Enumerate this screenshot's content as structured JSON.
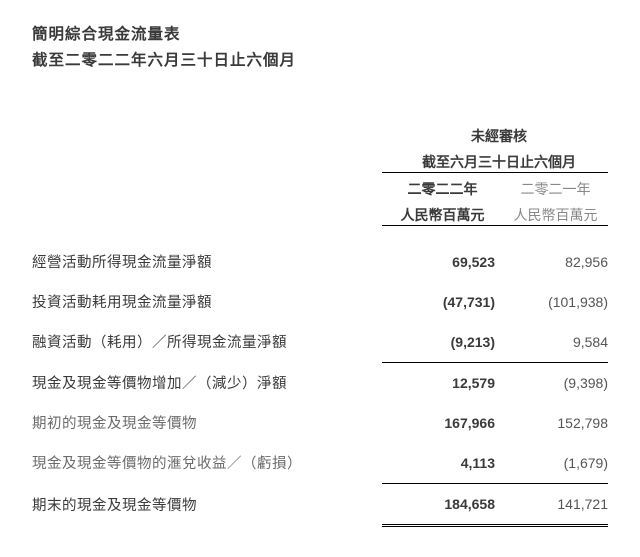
{
  "title": {
    "line1": "簡明綜合現金流量表",
    "line2": "截至二零二二年六月三十日止六個月"
  },
  "header": {
    "unaudited": "未經審核",
    "period": "截至六月三十日止六個月",
    "year_current": "二零二二年",
    "year_prior": "二零二一年",
    "unit_current": "人民幣百萬元",
    "unit_prior": "人民幣百萬元"
  },
  "rows": [
    {
      "label": "經營活動所得現金流量淨額",
      "current": "69,523",
      "prior": "82,956",
      "rule": ""
    },
    {
      "label": "投資活動耗用現金流量淨額",
      "current": "(47,731)",
      "prior": "(101,938)",
      "rule": ""
    },
    {
      "label": "融資活動（耗用）／所得現金流量淨額",
      "current": "(9,213)",
      "prior": "9,584",
      "rule": "single"
    },
    {
      "label": "現金及現金等價物增加／（減少）淨額",
      "current": "12,579",
      "prior": "(9,398)",
      "rule": ""
    },
    {
      "label": "期初的現金及現金等價物",
      "current": "167,966",
      "prior": "152,798",
      "rule": "",
      "gray": true
    },
    {
      "label": "現金及現金等價物的滙兌收益／（虧損）",
      "current": "4,113",
      "prior": "(1,679)",
      "rule": "single",
      "gray": true
    },
    {
      "label": "期末的現金及現金等價物",
      "current": "184,658",
      "prior": "141,721",
      "rule": "double"
    }
  ],
  "style": {
    "bold_color": "#3a3a3a",
    "gray_color": "#888"
  }
}
